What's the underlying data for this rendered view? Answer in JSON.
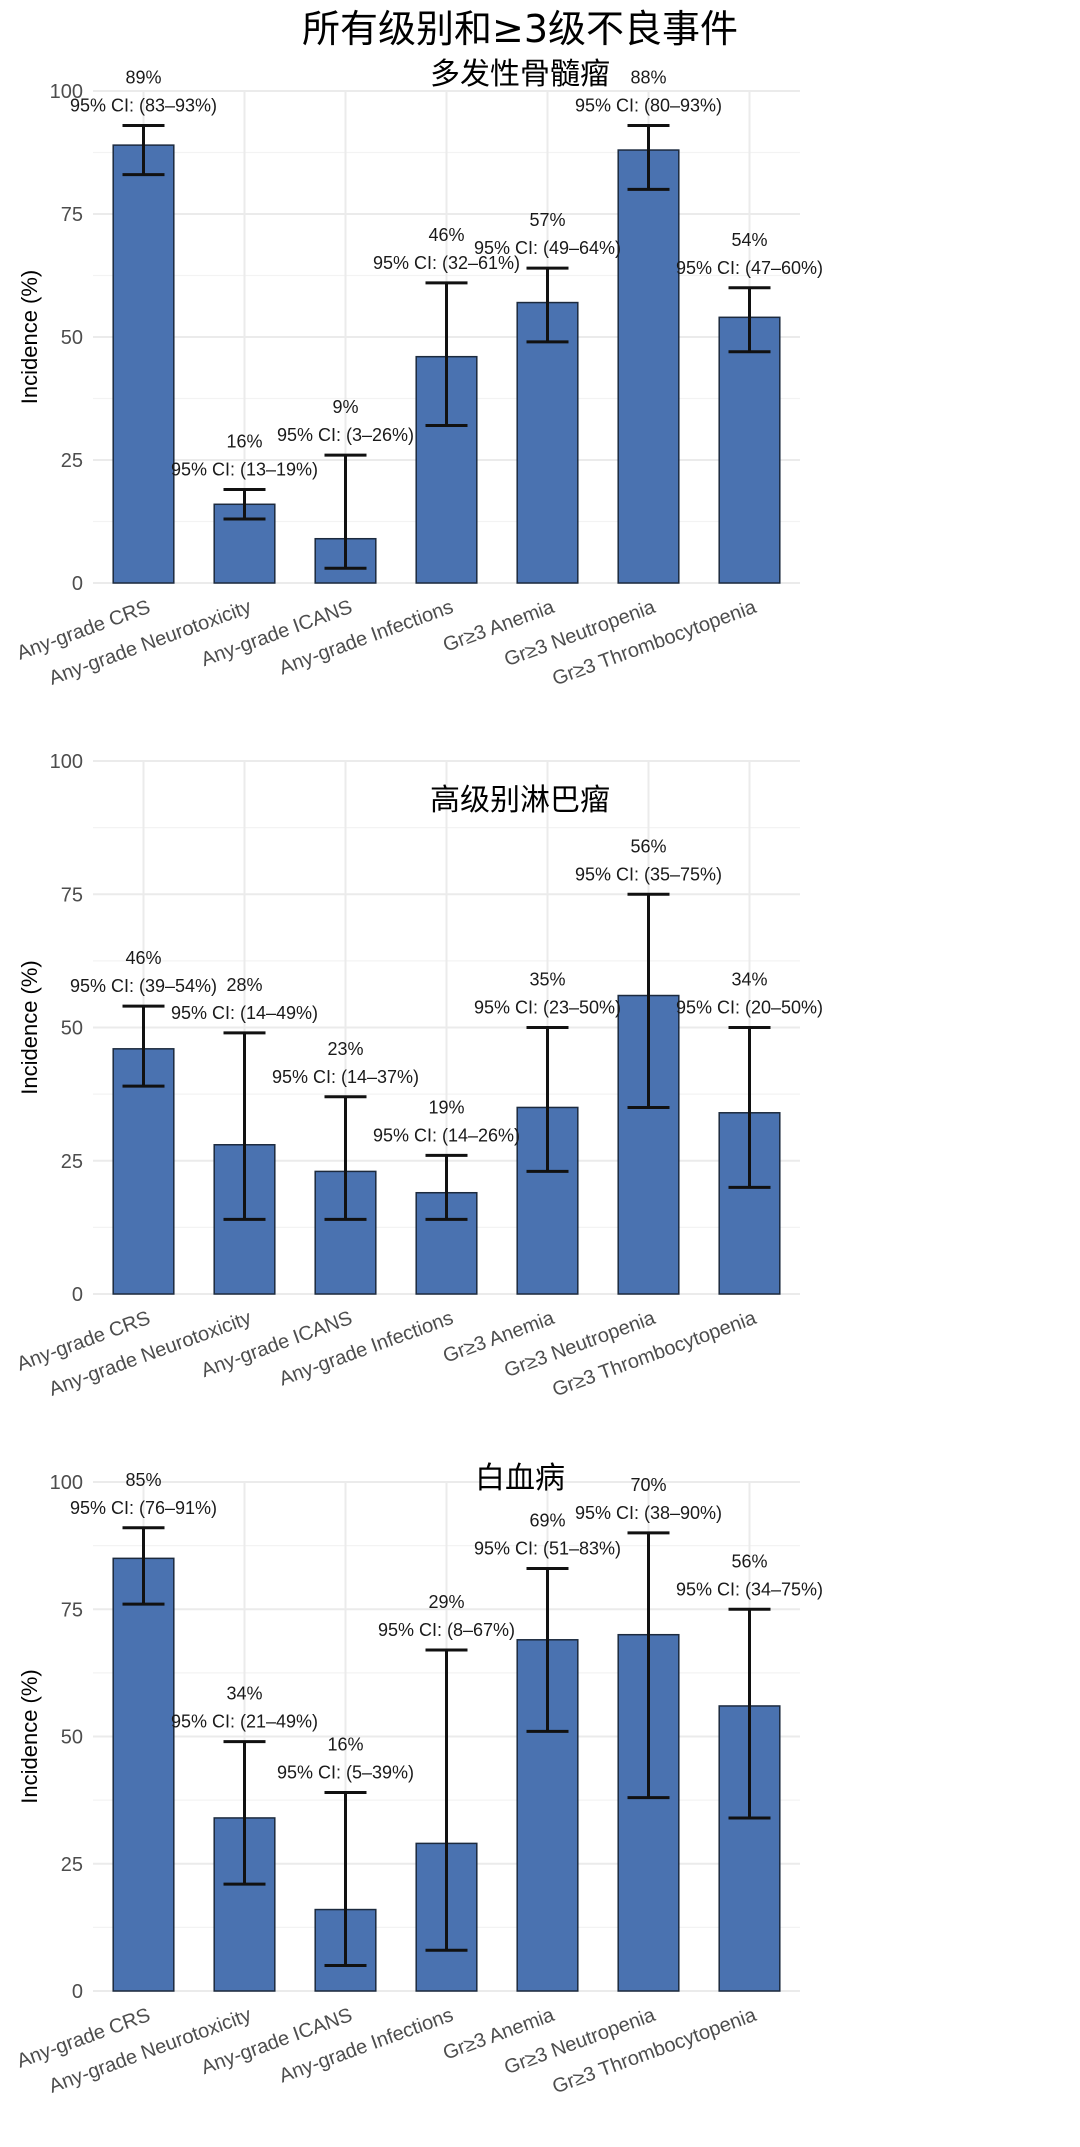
{
  "title": "所有级别和≥3级不良事件",
  "chart_data": [
    {
      "type": "bar",
      "title": "多发性骨髓瘤",
      "ylabel": "Incidence (%)",
      "ylim": [
        0,
        100
      ],
      "yticks": [
        0,
        25,
        50,
        75,
        100
      ],
      "grid": true,
      "ci_prefix": "95% CI:",
      "categories": [
        "Any-grade CRS",
        "Any-grade Neurotoxicity",
        "Any-grade ICANS",
        "Any-grade Infections",
        "Gr≥3 Anemia",
        "Gr≥3 Neutropenia",
        "Gr≥3 Thrombocytopenia"
      ],
      "values": [
        89,
        16,
        9,
        46,
        57,
        88,
        54
      ],
      "ci_low": [
        83,
        13,
        3,
        32,
        49,
        80,
        47
      ],
      "ci_high": [
        93,
        19,
        26,
        61,
        64,
        93,
        60
      ]
    },
    {
      "type": "bar",
      "title": "高级别淋巴瘤",
      "ylabel": "Incidence (%)",
      "ylim": [
        0,
        100
      ],
      "yticks": [
        0,
        25,
        50,
        75,
        100
      ],
      "grid": true,
      "ci_prefix": "95% CI:",
      "categories": [
        "Any-grade CRS",
        "Any-grade Neurotoxicity",
        "Any-grade ICANS",
        "Any-grade Infections",
        "Gr≥3 Anemia",
        "Gr≥3 Neutropenia",
        "Gr≥3 Thrombocytopenia"
      ],
      "values": [
        46,
        28,
        23,
        19,
        35,
        56,
        34
      ],
      "ci_low": [
        39,
        14,
        14,
        14,
        23,
        35,
        20
      ],
      "ci_high": [
        54,
        49,
        37,
        26,
        50,
        75,
        50
      ]
    },
    {
      "type": "bar",
      "title": "白血病",
      "ylabel": "Incidence (%)",
      "ylim": [
        0,
        100
      ],
      "yticks": [
        0,
        25,
        50,
        75,
        100
      ],
      "grid": true,
      "ci_prefix": "95% CI:",
      "categories": [
        "Any-grade CRS",
        "Any-grade Neurotoxicity",
        "Any-grade ICANS",
        "Any-grade Infections",
        "Gr≥3 Anemia",
        "Gr≥3 Neutropenia",
        "Gr≥3 Thrombocytopenia"
      ],
      "values": [
        85,
        34,
        16,
        29,
        69,
        70,
        56
      ],
      "ci_low": [
        76,
        21,
        5,
        8,
        51,
        38,
        34
      ],
      "ci_high": [
        91,
        49,
        39,
        67,
        83,
        90,
        75
      ]
    }
  ],
  "colors": {
    "bar": "#4a72b0",
    "bar_edge": "#1c2a3e",
    "grid": "#ebebeb",
    "error": "#111111"
  }
}
